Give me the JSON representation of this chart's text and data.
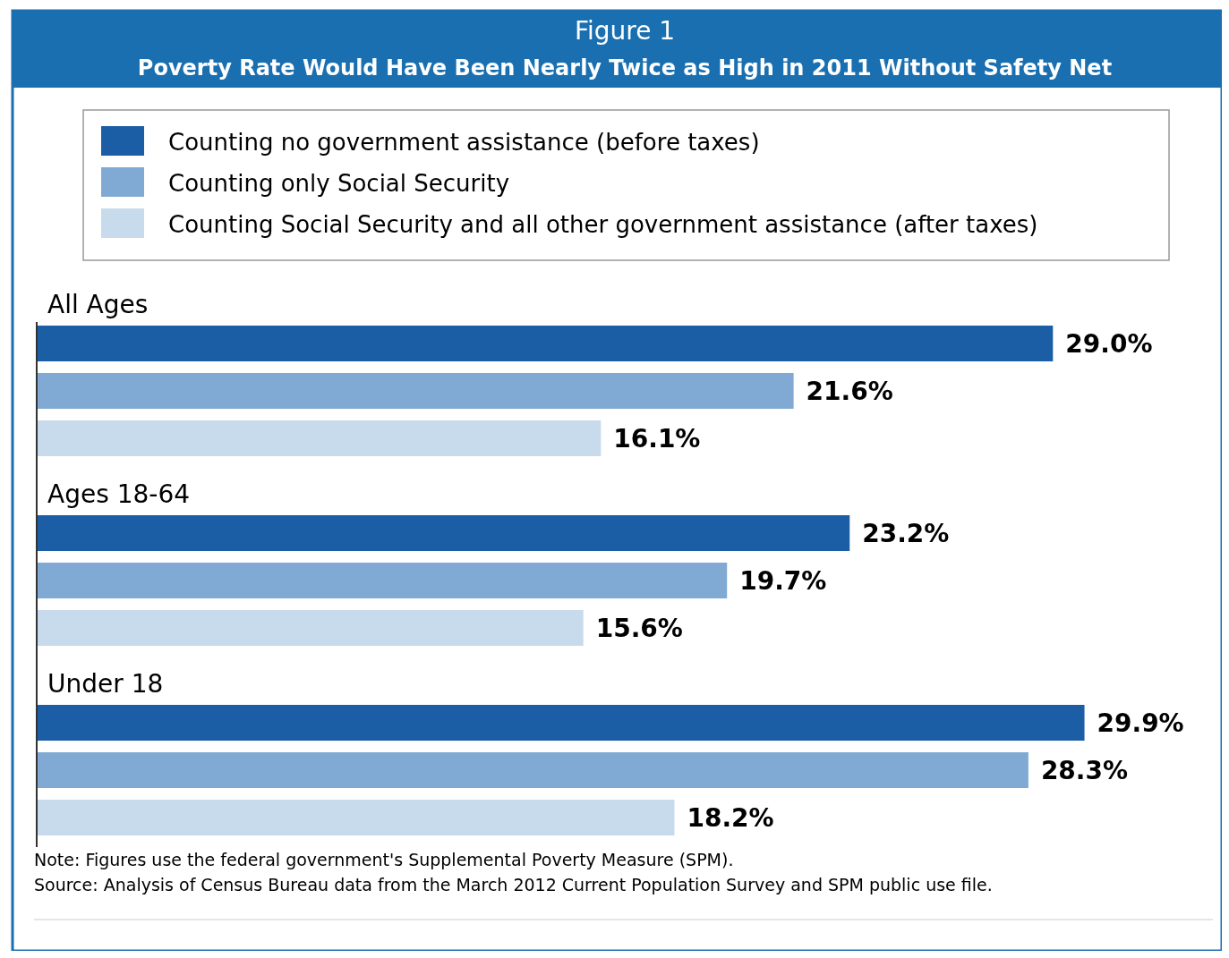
{
  "chart_data": {
    "type": "bar",
    "orientation": "horizontal",
    "title": "Figure 1",
    "subtitle": "Poverty Rate Would Have Been Nearly Twice as High in 2011 Without Safety Net",
    "categories": [
      "All Ages",
      "Ages 18-64",
      "Under 18"
    ],
    "series": [
      {
        "name": "Counting no government assistance (before taxes)",
        "color": "#1b5ea6",
        "values": [
          29.0,
          23.2,
          29.9
        ],
        "value_labels": [
          "29.0%",
          "23.2%",
          "29.9%"
        ]
      },
      {
        "name": "Counting only Social Security",
        "color": "#80aad3",
        "values": [
          21.6,
          19.7,
          28.3
        ],
        "value_labels": [
          "21.6%",
          "19.7%",
          "28.3%"
        ]
      },
      {
        "name": "Counting Social Security and all other government assistance (after taxes)",
        "color": "#c8dbed",
        "values": [
          16.1,
          15.6,
          18.2
        ],
        "value_labels": [
          "16.1%",
          "15.6%",
          "18.2%"
        ]
      }
    ],
    "tick_labels": "y",
    "legend": "top",
    "annotations": [
      "Note:  Figures use the federal government's Supplemental Poverty Measure (SPM).",
      "Source:  Analysis of Census Bureau data from the March 2012 Current Population Survey and SPM public use file."
    ]
  }
}
